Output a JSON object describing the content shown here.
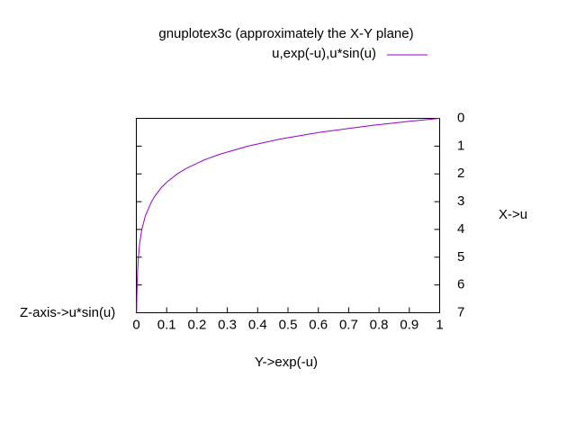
{
  "chart_data": {
    "type": "line",
    "title": "gnuplotex3c (approximately the X-Y plane)",
    "x_label": "Y->exp(-u)",
    "y_label": "X->u",
    "z_label": "Z-axis->u*sin(u)",
    "x": [
      1,
      0.905,
      0.779,
      0.607,
      0.472,
      0.368,
      0.273,
      0.223,
      0.165,
      0.135,
      0.1,
      0.082,
      0.061,
      0.05,
      0.03,
      0.018,
      0.011,
      0.0067,
      0.0041,
      0.0025,
      0.0015,
      0.0009
    ],
    "series": [
      {
        "name": "u,exp(-u),u*sin(u)",
        "color": "#9400d3",
        "values": [
          0,
          0.1,
          0.25,
          0.5,
          0.75,
          1,
          1.3,
          1.5,
          1.8,
          2,
          2.3,
          2.5,
          2.8,
          3,
          3.5,
          4,
          4.5,
          5,
          5.5,
          6,
          6.5,
          7
        ]
      }
    ],
    "xlim": [
      0,
      1
    ],
    "xticks": [
      0,
      0.1,
      0.2,
      0.3,
      0.4,
      0.5,
      0.6,
      0.7,
      0.8,
      0.9,
      1
    ],
    "ylim": [
      7,
      0
    ],
    "yticks": [
      0,
      1,
      2,
      3,
      4,
      5,
      6,
      7
    ]
  }
}
